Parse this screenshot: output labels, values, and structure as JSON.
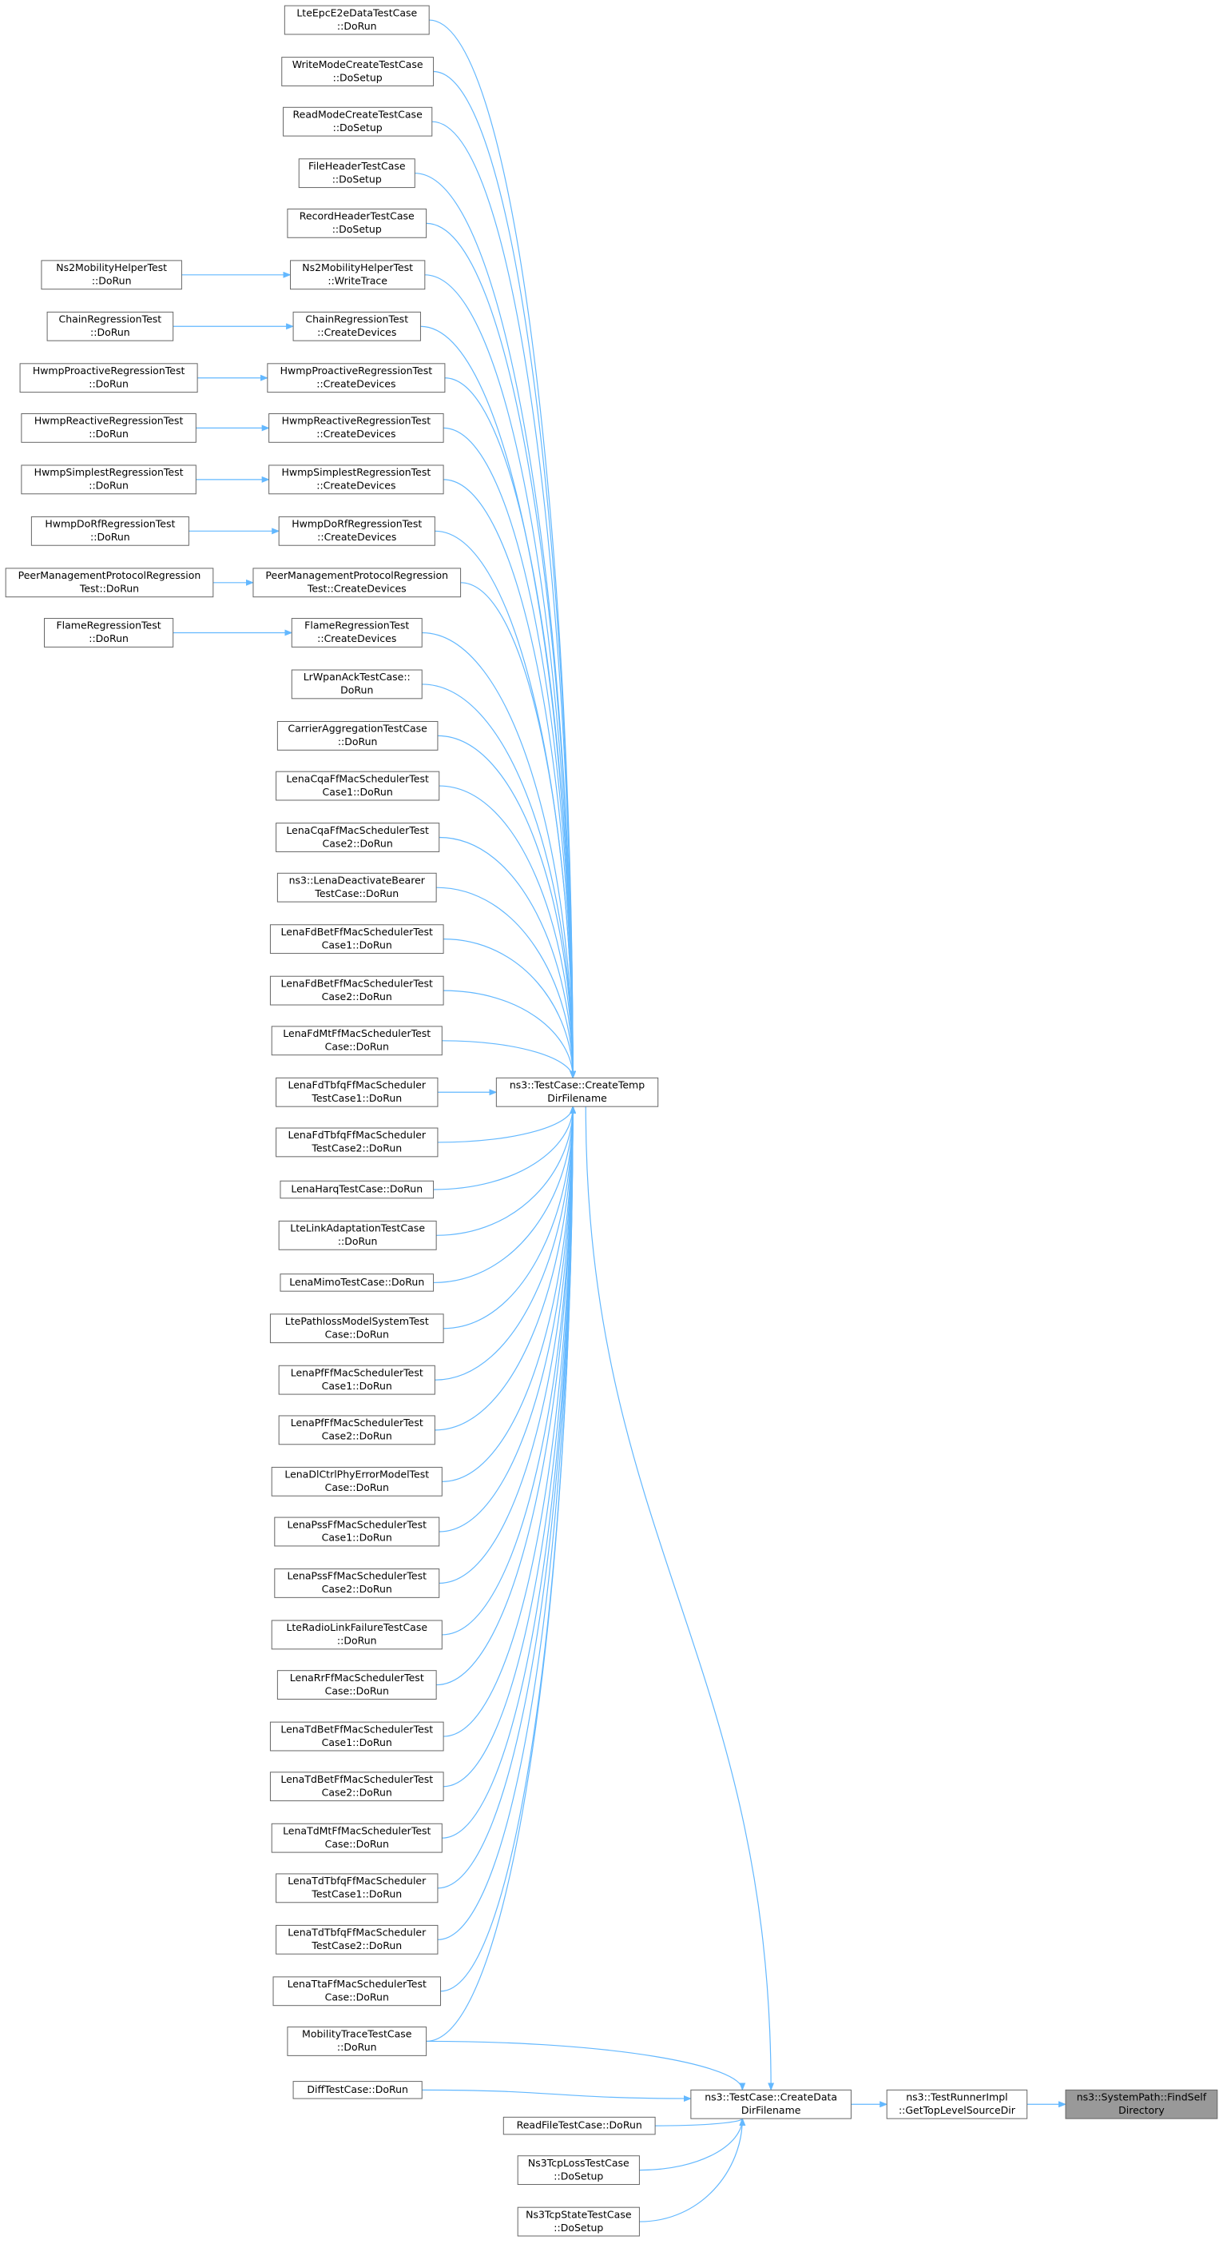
{
  "nodes": [
    {
      "lines": [
        "LteEpcE2eDataTestCase",
        "::DoRun"
      ]
    },
    {
      "lines": [
        "WriteModeCreateTestCase",
        "::DoSetup"
      ]
    },
    {
      "lines": [
        "ReadModeCreateTestCase",
        "::DoSetup"
      ]
    },
    {
      "lines": [
        "FileHeaderTestCase",
        "::DoSetup"
      ]
    },
    {
      "lines": [
        "RecordHeaderTestCase",
        "::DoSetup"
      ]
    },
    {
      "lines": [
        "Ns2MobilityHelperTest",
        "::WriteTrace"
      ]
    },
    {
      "lines": [
        "ChainRegressionTest",
        "::CreateDevices"
      ]
    },
    {
      "lines": [
        "HwmpProactiveRegressionTest",
        "::CreateDevices"
      ]
    },
    {
      "lines": [
        "HwmpReactiveRegressionTest",
        "::CreateDevices"
      ]
    },
    {
      "lines": [
        "HwmpSimplestRegressionTest",
        "::CreateDevices"
      ]
    },
    {
      "lines": [
        "HwmpDoRfRegressionTest",
        "::CreateDevices"
      ]
    },
    {
      "lines": [
        "PeerManagementProtocolRegression",
        "Test::CreateDevices"
      ]
    },
    {
      "lines": [
        "FlameRegressionTest",
        "::CreateDevices"
      ]
    },
    {
      "lines": [
        "LrWpanAckTestCase::",
        "DoRun"
      ]
    },
    {
      "lines": [
        "CarrierAggregationTestCase",
        "::DoRun"
      ]
    },
    {
      "lines": [
        "LenaCqaFfMacSchedulerTest",
        "Case1::DoRun"
      ]
    },
    {
      "lines": [
        "LenaCqaFfMacSchedulerTest",
        "Case2::DoRun"
      ]
    },
    {
      "lines": [
        "ns3::LenaDeactivateBearer",
        "TestCase::DoRun"
      ]
    },
    {
      "lines": [
        "LenaFdBetFfMacSchedulerTest",
        "Case1::DoRun"
      ]
    },
    {
      "lines": [
        "LenaFdBetFfMacSchedulerTest",
        "Case2::DoRun"
      ]
    },
    {
      "lines": [
        "LenaFdMtFfMacSchedulerTest",
        "Case::DoRun"
      ]
    },
    {
      "lines": [
        "LenaFdTbfqFfMacScheduler",
        "TestCase1::DoRun"
      ]
    },
    {
      "lines": [
        "LenaFdTbfqFfMacScheduler",
        "TestCase2::DoRun"
      ]
    },
    {
      "lines": [
        "LenaHarqTestCase::DoRun"
      ]
    },
    {
      "lines": [
        "LteLinkAdaptationTestCase",
        "::DoRun"
      ]
    },
    {
      "lines": [
        "LenaMimoTestCase::DoRun"
      ]
    },
    {
      "lines": [
        "LtePathlossModelSystemTest",
        "Case::DoRun"
      ]
    },
    {
      "lines": [
        "LenaPfFfMacSchedulerTest",
        "Case1::DoRun"
      ]
    },
    {
      "lines": [
        "LenaPfFfMacSchedulerTest",
        "Case2::DoRun"
      ]
    },
    {
      "lines": [
        "LenaDlCtrlPhyErrorModelTest",
        "Case::DoRun"
      ]
    },
    {
      "lines": [
        "LenaPssFfMacSchedulerTest",
        "Case1::DoRun"
      ]
    },
    {
      "lines": [
        "LenaPssFfMacSchedulerTest",
        "Case2::DoRun"
      ]
    },
    {
      "lines": [
        "LteRadioLinkFailureTestCase",
        "::DoRun"
      ]
    },
    {
      "lines": [
        "LenaRrFfMacSchedulerTest",
        "Case::DoRun"
      ]
    },
    {
      "lines": [
        "LenaTdBetFfMacSchedulerTest",
        "Case1::DoRun"
      ]
    },
    {
      "lines": [
        "LenaTdBetFfMacSchedulerTest",
        "Case2::DoRun"
      ]
    },
    {
      "lines": [
        "LenaTdMtFfMacSchedulerTest",
        "Case::DoRun"
      ]
    },
    {
      "lines": [
        "LenaTdTbfqFfMacScheduler",
        "TestCase1::DoRun"
      ]
    },
    {
      "lines": [
        "LenaTdTbfqFfMacScheduler",
        "TestCase2::DoRun"
      ]
    },
    {
      "lines": [
        "LenaTtaFfMacSchedulerTest",
        "Case::DoRun"
      ]
    },
    {
      "lines": [
        "MobilityTraceTestCase",
        "::DoRun"
      ]
    },
    {
      "lines": [
        "DiffTestCase::DoRun"
      ]
    },
    {
      "lines": [
        "Ns2MobilityHelperTest",
        "::DoRun"
      ]
    },
    {
      "lines": [
        "ChainRegressionTest",
        "::DoRun"
      ]
    },
    {
      "lines": [
        "HwmpProactiveRegressionTest",
        "::DoRun"
      ]
    },
    {
      "lines": [
        "HwmpReactiveRegressionTest",
        "::DoRun"
      ]
    },
    {
      "lines": [
        "HwmpSimplestRegressionTest",
        "::DoRun"
      ]
    },
    {
      "lines": [
        "HwmpDoRfRegressionTest",
        "::DoRun"
      ]
    },
    {
      "lines": [
        "PeerManagementProtocolRegression",
        "Test::DoRun"
      ]
    },
    {
      "lines": [
        "FlameRegressionTest",
        "::DoRun"
      ]
    },
    {
      "lines": [
        "ns3::TestCase::CreateTemp",
        "DirFilename"
      ]
    },
    {
      "lines": [
        "ns3::TestCase::CreateData",
        "DirFilename"
      ]
    },
    {
      "lines": [
        "ReadFileTestCase::DoRun"
      ]
    },
    {
      "lines": [
        "Ns3TcpLossTestCase",
        "::DoSetup"
      ]
    },
    {
      "lines": [
        "Ns3TcpStateTestCase",
        "::DoSetup"
      ]
    },
    {
      "lines": [
        "ns3::TestRunnerImpl",
        "::GetTopLevelSourceDir"
      ]
    },
    {
      "lines": [
        "ns3::SystemPath::FindSelf",
        "Directory"
      ]
    }
  ]
}
